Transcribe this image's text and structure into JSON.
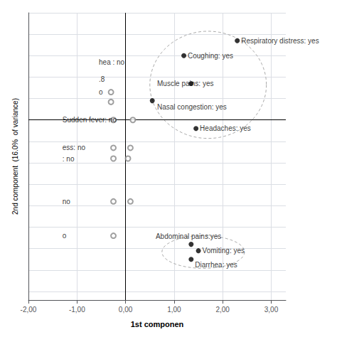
{
  "chart_data": {
    "type": "scatter",
    "xlabel": "1st componen",
    "ylabel": "2nd component  (16.0%  of variance)",
    "xlim": [
      -2.0,
      3.3
    ],
    "xticks": [
      {
        "value": -2.0,
        "label": "-2,00"
      },
      {
        "value": -1.0,
        "label": "-1,00"
      },
      {
        "value": 0.0,
        "label": "0,00"
      },
      {
        "value": 1.0,
        "label": "1,00"
      },
      {
        "value": 2.0,
        "label": "2,00"
      },
      {
        "value": 3.0,
        "label": "3,00"
      }
    ],
    "ylim": [
      -4.2,
      2.5
    ],
    "yticks": [
      -4,
      -3.5,
      -3,
      -2.5,
      -2,
      -1.5,
      -1,
      -0.5,
      0,
      0.5,
      1,
      1.5,
      2,
      2.5
    ],
    "tick_labels": "x",
    "grid": true,
    "reference_lines": [
      {
        "axis": "x",
        "value": 0
      },
      {
        "axis": "y",
        "value": 0
      }
    ],
    "points": {
      "color": "#000000",
      "marker": "circle",
      "x": [
        1.2,
        2.3,
        1.35,
        0.55,
        1.45,
        1.35,
        1.5,
        1.35
      ],
      "y": [
        1.5,
        1.85,
        0.85,
        0.45,
        -0.2,
        -2.9,
        -3.05,
        -3.25
      ],
      "labels": [
        "Coughing: yes",
        "Respiratory distress: yes",
        "Muscle pains: yes",
        "Nasal congestion: yes",
        "Headaches: yes",
        "Abdominal pains:yes",
        "Vomiting: yes",
        "Diarrhea: yes"
      ],
      "label_x": [
        1.28,
        2.38,
        0.65,
        0.65,
        1.53,
        0.62,
        1.58,
        1.43
      ],
      "label_y": [
        1.5,
        1.85,
        0.85,
        0.3,
        -0.2,
        -2.72,
        -3.05,
        -3.38
      ]
    },
    "open_points": {
      "color": "#888888",
      "marker": "open_circle",
      "x": [
        -0.3,
        -0.3,
        -0.25,
        0.15,
        -0.25,
        0.1,
        -0.25,
        0.05,
        -0.25,
        0.1,
        -0.25
      ],
      "y": [
        0.65,
        0.42,
        0.0,
        0.0,
        -0.65,
        -0.65,
        -0.9,
        -0.9,
        -1.9,
        -1.9,
        -2.7
      ]
    },
    "ellipses": {
      "color": "#aaaaaa",
      "line_style": "dashed",
      "cx": [
        1.7,
        1.6
      ],
      "cy": [
        0.82,
        -3.08
      ],
      "rx": [
        1.2,
        0.85
      ],
      "ry": [
        1.25,
        0.38
      ]
    },
    "annotations": [
      {
        "x": -0.55,
        "y": 1.35,
        "text": "hea : no"
      },
      {
        "x": -0.55,
        "y": 0.95,
        "text": ".8"
      },
      {
        "x": -0.55,
        "y": 0.65,
        "text": "o"
      },
      {
        "x": -1.3,
        "y": 0.0,
        "text": "Sudden fever: no"
      },
      {
        "x": -1.3,
        "y": -0.65,
        "text": "ess: no"
      },
      {
        "x": -1.3,
        "y": -0.9,
        "text": ": no"
      },
      {
        "x": -1.3,
        "y": -1.9,
        "text": "no"
      },
      {
        "x": -1.3,
        "y": -2.7,
        "text": "o"
      }
    ]
  }
}
